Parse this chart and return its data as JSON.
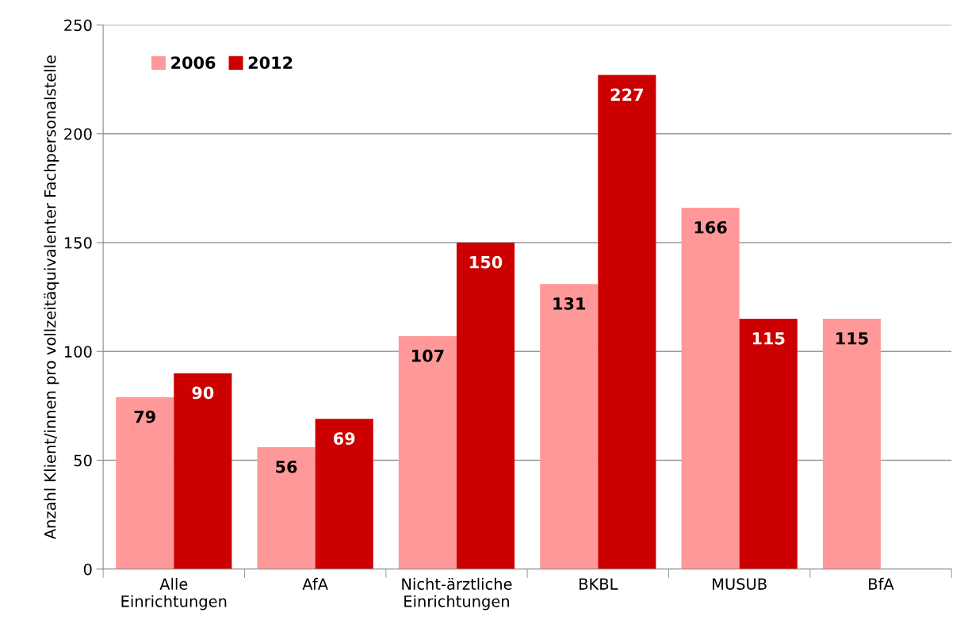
{
  "chart_data": {
    "type": "bar",
    "ylabel": "Anzahl Klient/innen pro vollzeitäquivalenter Fachpersonalstelle",
    "categories": [
      "Alle\nEinrichtungen",
      "AfA",
      "Nicht-ärztliche\nEinrichtungen",
      "BKBL",
      "MUSUB",
      "BfA"
    ],
    "series": [
      {
        "name": "2006",
        "color": "#ff9999",
        "values": [
          79,
          56,
          107,
          131,
          166,
          115
        ]
      },
      {
        "name": "2012",
        "color": "#cc0000",
        "values": [
          90,
          69,
          150,
          227,
          115,
          null
        ]
      }
    ],
    "ylim": [
      0,
      250
    ],
    "yticks": [
      0,
      50,
      100,
      150,
      200,
      250
    ],
    "grid": "y",
    "legend": "top left",
    "data_labels": true
  }
}
